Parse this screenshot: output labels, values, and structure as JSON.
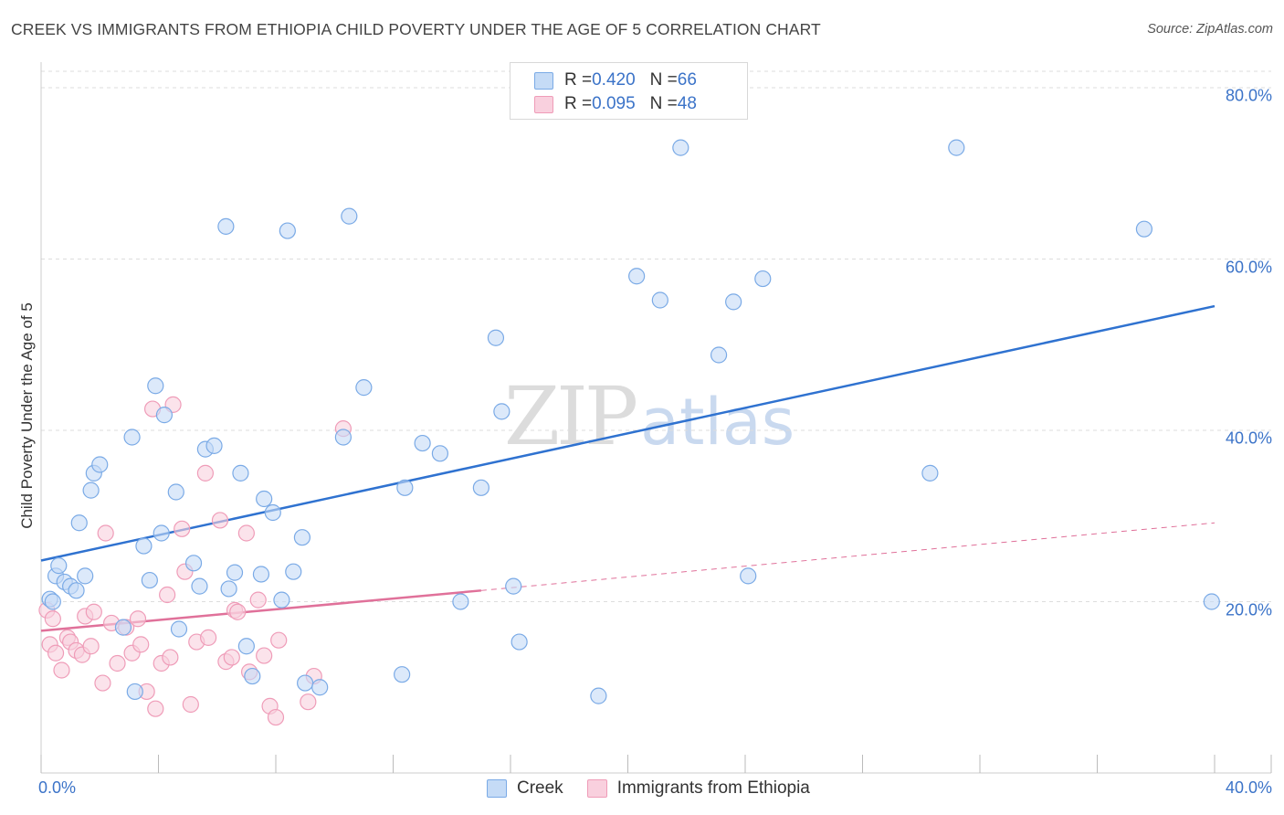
{
  "title": "CREEK VS IMMIGRANTS FROM ETHIOPIA CHILD POVERTY UNDER THE AGE OF 5 CORRELATION CHART",
  "source": "Source: ZipAtlas.com",
  "watermark": {
    "zip": "ZIP",
    "atlas": "atlas"
  },
  "legend": {
    "creek": {
      "r_label": "R = ",
      "r_value": "0.420",
      "n_label": "N = ",
      "n_value": "66"
    },
    "ethiopia": {
      "r_label": "R = ",
      "r_value": "0.095",
      "n_label": "N = ",
      "n_value": "48"
    }
  },
  "colors": {
    "creek": "#7aaae6",
    "creek_fill": "#c5dbf6",
    "creek_line": "#2f72d0",
    "ethiopia": "#ef9cb8",
    "ethiopia_fill": "#f9d0de",
    "ethiopia_line": "#e0719a",
    "tick_text": "#3b73c8",
    "grid": "#dddddd"
  },
  "chart_data": {
    "type": "scatter",
    "title": "CREEK VS IMMIGRANTS FROM ETHIOPIA CHILD POVERTY UNDER THE AGE OF 5 CORRELATION CHART",
    "xlabel": "",
    "ylabel": "Child Poverty Under the Age of 5",
    "xlim": [
      0,
      40
    ],
    "ylim": [
      0,
      80
    ],
    "x_tick_labels": [
      "0.0%",
      "40.0%"
    ],
    "y_ticks": [
      20,
      40,
      60,
      80
    ],
    "y_tick_labels": [
      "20.0%",
      "40.0%",
      "60.0%",
      "80.0%"
    ],
    "grid": true,
    "legend_position": "top-center",
    "series": [
      {
        "name": "Creek",
        "points": [
          [
            0.3,
            20.3
          ],
          [
            0.5,
            23.0
          ],
          [
            0.6,
            24.2
          ],
          [
            0.8,
            22.3
          ],
          [
            1.0,
            21.8
          ],
          [
            1.2,
            21.3
          ],
          [
            1.3,
            29.2
          ],
          [
            1.5,
            23.0
          ],
          [
            1.7,
            33.0
          ],
          [
            1.8,
            35.0
          ],
          [
            2.0,
            36.0
          ],
          [
            2.8,
            17.0
          ],
          [
            3.1,
            39.2
          ],
          [
            3.2,
            9.5
          ],
          [
            3.5,
            26.5
          ],
          [
            3.7,
            22.5
          ],
          [
            3.9,
            45.2
          ],
          [
            4.1,
            28.0
          ],
          [
            4.2,
            41.8
          ],
          [
            4.6,
            32.8
          ],
          [
            4.7,
            16.8
          ],
          [
            5.2,
            24.5
          ],
          [
            5.4,
            21.8
          ],
          [
            5.6,
            37.8
          ],
          [
            5.9,
            38.2
          ],
          [
            6.3,
            63.8
          ],
          [
            6.4,
            21.5
          ],
          [
            6.6,
            23.4
          ],
          [
            6.8,
            35.0
          ],
          [
            7.0,
            14.8
          ],
          [
            7.2,
            11.3
          ],
          [
            7.5,
            23.2
          ],
          [
            7.6,
            32.0
          ],
          [
            7.9,
            30.4
          ],
          [
            8.2,
            20.2
          ],
          [
            8.4,
            63.3
          ],
          [
            8.6,
            23.5
          ],
          [
            8.9,
            27.5
          ],
          [
            9.0,
            10.5
          ],
          [
            9.5,
            10.0
          ],
          [
            10.3,
            39.2
          ],
          [
            10.5,
            65.0
          ],
          [
            11.0,
            45.0
          ],
          [
            12.3,
            11.5
          ],
          [
            12.4,
            33.3
          ],
          [
            13.0,
            38.5
          ],
          [
            13.6,
            37.3
          ],
          [
            14.3,
            20.0
          ],
          [
            15.0,
            33.3
          ],
          [
            15.5,
            50.8
          ],
          [
            15.7,
            42.2
          ],
          [
            16.1,
            21.8
          ],
          [
            16.3,
            15.3
          ],
          [
            19.0,
            9.0
          ],
          [
            20.3,
            58.0
          ],
          [
            21.1,
            55.2
          ],
          [
            21.8,
            73.0
          ],
          [
            23.1,
            48.8
          ],
          [
            23.6,
            55.0
          ],
          [
            24.1,
            23.0
          ],
          [
            24.6,
            57.7
          ],
          [
            30.3,
            35.0
          ],
          [
            31.2,
            73.0
          ],
          [
            37.6,
            63.5
          ],
          [
            39.9,
            20.0
          ],
          [
            0.4,
            20.0
          ]
        ]
      },
      {
        "name": "Immigrants from Ethiopia",
        "points": [
          [
            0.2,
            19.0
          ],
          [
            0.3,
            15.0
          ],
          [
            0.4,
            18.0
          ],
          [
            0.5,
            14.0
          ],
          [
            0.7,
            12.0
          ],
          [
            0.9,
            15.8
          ],
          [
            1.0,
            15.3
          ],
          [
            1.2,
            14.3
          ],
          [
            1.4,
            13.8
          ],
          [
            1.5,
            18.3
          ],
          [
            1.7,
            14.8
          ],
          [
            1.8,
            18.8
          ],
          [
            2.1,
            10.5
          ],
          [
            2.2,
            28.0
          ],
          [
            2.4,
            17.5
          ],
          [
            2.6,
            12.8
          ],
          [
            2.9,
            17.0
          ],
          [
            3.1,
            14.0
          ],
          [
            3.3,
            18.0
          ],
          [
            3.4,
            15.0
          ],
          [
            3.6,
            9.5
          ],
          [
            3.8,
            42.5
          ],
          [
            3.9,
            7.5
          ],
          [
            4.1,
            12.8
          ],
          [
            4.3,
            20.8
          ],
          [
            4.4,
            13.5
          ],
          [
            4.5,
            43.0
          ],
          [
            4.8,
            28.5
          ],
          [
            4.9,
            23.5
          ],
          [
            5.1,
            8.0
          ],
          [
            5.3,
            15.3
          ],
          [
            5.6,
            35.0
          ],
          [
            5.7,
            15.8
          ],
          [
            6.1,
            29.5
          ],
          [
            6.3,
            13.0
          ],
          [
            6.5,
            13.5
          ],
          [
            6.6,
            19.0
          ],
          [
            6.7,
            18.8
          ],
          [
            7.0,
            28.0
          ],
          [
            7.1,
            11.8
          ],
          [
            7.4,
            20.2
          ],
          [
            7.6,
            13.7
          ],
          [
            7.8,
            7.8
          ],
          [
            8.0,
            6.5
          ],
          [
            8.1,
            15.5
          ],
          [
            9.1,
            8.3
          ],
          [
            9.3,
            11.3
          ],
          [
            10.3,
            40.2
          ]
        ]
      }
    ],
    "trendlines": [
      {
        "series": "Creek",
        "style": "solid",
        "from": [
          0,
          24.8
        ],
        "to": [
          40,
          54.5
        ]
      },
      {
        "series": "Immigrants from Ethiopia",
        "style": "solid",
        "from": [
          0,
          16.6
        ],
        "to": [
          15,
          21.3
        ]
      },
      {
        "series": "Immigrants from Ethiopia",
        "style": "dashed",
        "from": [
          15,
          21.3
        ],
        "to": [
          40,
          29.2
        ]
      }
    ]
  }
}
